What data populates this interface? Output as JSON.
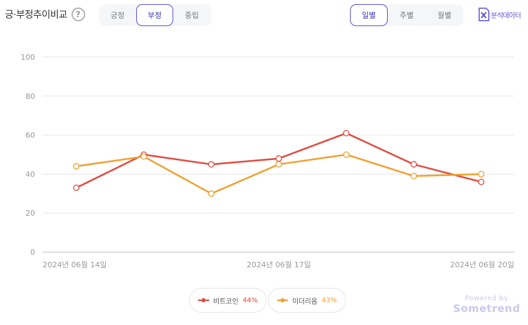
{
  "header": {
    "title": "긍·부정추이비교",
    "help_icon": "?"
  },
  "sentiment_tabs": [
    {
      "label": "긍정",
      "active": false
    },
    {
      "label": "부정",
      "active": true
    },
    {
      "label": "중립",
      "active": false
    }
  ],
  "period_tabs": [
    {
      "label": "일별",
      "active": true
    },
    {
      "label": "주별",
      "active": false
    },
    {
      "label": "월별",
      "active": false
    }
  ],
  "export": {
    "label": "분석데이터",
    "icon": "excel-icon",
    "color": "#5b4fd8"
  },
  "chart_data": {
    "type": "line",
    "title": "",
    "xlabel": "",
    "ylabel": "",
    "ylim": [
      0,
      100
    ],
    "yticks": [
      0,
      20,
      40,
      60,
      80,
      100
    ],
    "x": [
      "2024-06-14",
      "2024-06-15",
      "2024-06-16",
      "2024-06-17",
      "2024-06-18",
      "2024-06-19",
      "2024-06-20"
    ],
    "xtick_labels": [
      {
        "index": 0,
        "label": "2024년 06월 14일"
      },
      {
        "index": 3,
        "label": "2024년 06월 17일"
      },
      {
        "index": 6,
        "label": "2024년 06월 20일"
      }
    ],
    "grid": true,
    "legend_position": "bottom",
    "series": [
      {
        "name": "비트코인",
        "percent": "44%",
        "color": "#e04a3f",
        "values": [
          33,
          50,
          45,
          48,
          61,
          45,
          36
        ]
      },
      {
        "name": "이더리움",
        "percent": "43%",
        "color": "#f0a030",
        "values": [
          44,
          49,
          30,
          45,
          50,
          39,
          40
        ]
      }
    ]
  },
  "watermark": {
    "line1": "Powered by",
    "line2": "Sometrend"
  }
}
